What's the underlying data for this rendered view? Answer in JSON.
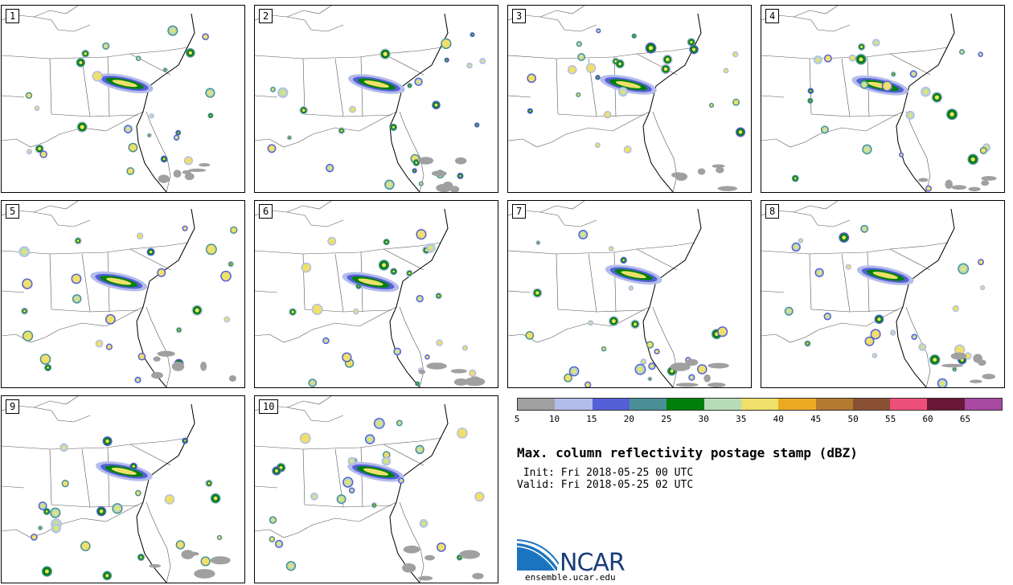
{
  "panels": [
    {
      "label": "1"
    },
    {
      "label": "2"
    },
    {
      "label": "3"
    },
    {
      "label": "4"
    },
    {
      "label": "5"
    },
    {
      "label": "6"
    },
    {
      "label": "7"
    },
    {
      "label": "8"
    },
    {
      "label": "9"
    },
    {
      "label": "10"
    }
  ],
  "colorbar": {
    "colors": [
      "#a0a0a0",
      "#b4bceb",
      "#5560d8",
      "#4a8f96",
      "#00800a",
      "#b8dcb8",
      "#eee06a",
      "#eaaa22",
      "#b47a30",
      "#8a5034",
      "#ee4f7a",
      "#6a1838",
      "#a848a0"
    ],
    "ticks": [
      "5",
      "10",
      "15",
      "20",
      "25",
      "30",
      "35",
      "40",
      "45",
      "50",
      "55",
      "60",
      "65"
    ]
  },
  "title": "Max. column reflectivity postage stamp (dBZ)",
  "init": " Init: Fri 2018-05-25 00 UTC",
  "valid": "Valid: Fri 2018-05-25 02 UTC",
  "logo": {
    "name": "NCAR",
    "website": "ensemble.ucar.edu"
  }
}
